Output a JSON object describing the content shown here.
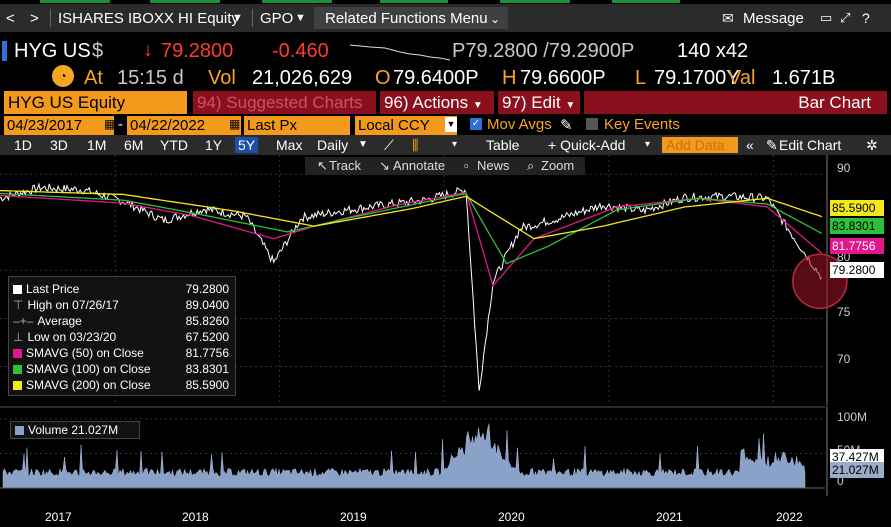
{
  "nav": {
    "back": "<",
    "forward": ">",
    "security_title": "ISHARES IBOXX HI Equity",
    "function": "GPO",
    "related_menu": "Related Functions Menu",
    "message": "Message",
    "icons": [
      "chevron-left-icon",
      "chevron-right-icon",
      "dropdown-icon",
      "envelope-icon",
      "minimize-icon",
      "maximize-icon",
      "help-icon"
    ]
  },
  "quote": {
    "ticker": "HYG US",
    "currency": "$",
    "last": "79.2800",
    "change": "-0.460",
    "bid_ask": "P79.2800 /79.2900P",
    "size": "140 x42",
    "at_label": "At",
    "time": "15:15 d",
    "vol_label": "Vol",
    "volume": "21,026,629",
    "open_label": "O",
    "open": "79.6400P",
    "high_label": "H",
    "high": "79.6600P",
    "low_label": "L",
    "low": "79.1700Y",
    "val_label": "Val",
    "value": "1.671B"
  },
  "toolbar": {
    "security": "HYG US Equity",
    "suggested": "94) Suggested Charts",
    "actions": "96) Actions",
    "edit": "97) Edit",
    "bar_chart": "Bar Chart"
  },
  "settings": {
    "start_date": "04/23/2017",
    "end_date": "04/22/2022",
    "field": "Last Px",
    "currency": "Local CCY",
    "mov_avgs": "Mov Avgs",
    "key_events": "Key Events"
  },
  "periods": {
    "items": [
      "1D",
      "3D",
      "1M",
      "6M",
      "YTD",
      "1Y",
      "5Y",
      "Max"
    ],
    "selected": "5Y",
    "frequency": "Daily",
    "table": "Table",
    "quick_add": "+ Quick-Add",
    "add_data": "Add Data",
    "edit_chart": "Edit Chart"
  },
  "subtools": {
    "track": "Track",
    "annotate": "Annotate",
    "news": "News",
    "zoom": "Zoom"
  },
  "legend": {
    "last_price": {
      "label": "Last Price",
      "value": "79.2800"
    },
    "high": {
      "label": "High on 07/26/17",
      "value": "89.0400"
    },
    "average": {
      "label": "Average",
      "value": "85.8260"
    },
    "low": {
      "label": "Low on 03/23/20",
      "value": "67.5200"
    },
    "sma50": {
      "label": "SMAVG (50)  on Close",
      "value": "81.7756",
      "color": "#e2168d"
    },
    "sma100": {
      "label": "SMAVG (100)  on Close",
      "value": "83.8301",
      "color": "#2fbf3a"
    },
    "sma200": {
      "label": "SMAVG (200)  on Close",
      "value": "85.5900",
      "color": "#f2e81a"
    }
  },
  "right_axis": {
    "ticks": [
      "90",
      "80",
      "75",
      "70"
    ],
    "tags": {
      "sma200": "85.5900",
      "sma100": "83.8301",
      "sma50": "81.7756",
      "last": "79.2800"
    }
  },
  "volume": {
    "label": "Volume 21.027M",
    "ticks": [
      "100M",
      "50M",
      "0"
    ],
    "tags": {
      "avg": "37.427M",
      "last": "21.027M"
    }
  },
  "x_axis": [
    "2017",
    "2018",
    "2019",
    "2020",
    "2021",
    "2022"
  ],
  "chart_data": {
    "type": "line",
    "xlabel": "",
    "ylabel": "",
    "x_range": [
      "04/23/2017",
      "04/22/2022"
    ],
    "ylim": [
      66,
      92
    ],
    "series": [
      {
        "name": "Last Price",
        "color": "#ffffff",
        "x": [
          "2017-04",
          "2017-07",
          "2017-10",
          "2018-01",
          "2018-04",
          "2018-07",
          "2018-10",
          "2018-12",
          "2019-02",
          "2019-05",
          "2019-08",
          "2019-11",
          "2020-02",
          "2020-03",
          "2020-04",
          "2020-06",
          "2020-09",
          "2020-12",
          "2021-03",
          "2021-06",
          "2021-09",
          "2021-12",
          "2022-02",
          "2022-04"
        ],
        "values": [
          87.5,
          88.6,
          88.4,
          87.2,
          85.2,
          86.4,
          85.6,
          80.8,
          85.5,
          86.2,
          86.8,
          87.3,
          88.4,
          67.5,
          78.8,
          84.4,
          85.5,
          86.8,
          86.2,
          87.6,
          87.7,
          87.5,
          83.2,
          79.28
        ]
      },
      {
        "name": "SMAVG (50)  on Close",
        "color": "#e2168d",
        "x": [
          "2017-04",
          "2018-01",
          "2018-06",
          "2018-12",
          "2019-03",
          "2019-09",
          "2020-02",
          "2020-04",
          "2020-07",
          "2021-01",
          "2021-07",
          "2021-12",
          "2022-04"
        ],
        "values": [
          87.8,
          87.0,
          85.7,
          83.3,
          84.6,
          86.8,
          88.1,
          78.4,
          83.3,
          86.6,
          87.5,
          86.6,
          81.7756
        ]
      },
      {
        "name": "SMAVG (100)  on Close",
        "color": "#2fbf3a",
        "x": [
          "2017-04",
          "2018-01",
          "2018-06",
          "2019-01",
          "2019-06",
          "2020-02",
          "2020-05",
          "2020-08",
          "2021-01",
          "2021-07",
          "2021-12",
          "2022-04"
        ],
        "values": [
          88.0,
          87.3,
          86.0,
          84.0,
          85.6,
          88.0,
          80.7,
          82.5,
          86.3,
          87.5,
          86.9,
          83.8301
        ]
      },
      {
        "name": "SMAVG (200)  on Close",
        "color": "#f2e81a",
        "x": [
          "2017-04",
          "2018-01",
          "2018-09",
          "2019-03",
          "2019-10",
          "2020-02",
          "2020-07",
          "2020-12",
          "2021-06",
          "2021-12",
          "2022-04"
        ],
        "values": [
          88.3,
          87.9,
          86.2,
          84.6,
          86.4,
          87.7,
          83.3,
          84.6,
          86.6,
          87.5,
          85.59
        ]
      }
    ],
    "volume_series": {
      "name": "Volume",
      "unit": "M",
      "ylim": [
        0,
        110
      ],
      "typical": 20,
      "peak_2020": 95,
      "last": 21.027
    }
  }
}
